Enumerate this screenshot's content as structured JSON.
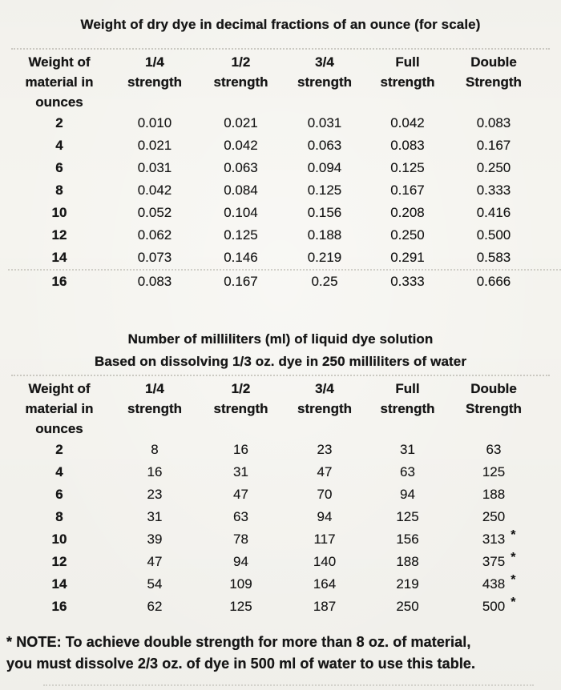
{
  "colors": {
    "paper": "#f5f4ef",
    "ink": "#161616",
    "rule": "#a9a79e"
  },
  "tables": [
    {
      "title_lines": [
        "Weight of dry dye in decimal fractions of an ounce (for scale)"
      ],
      "col_headers": [
        {
          "lines": [
            "Weight of",
            "material in",
            "ounces"
          ]
        },
        {
          "lines": [
            "1/4",
            "strength"
          ]
        },
        {
          "lines": [
            "1/2",
            "strength"
          ]
        },
        {
          "lines": [
            "3/4",
            "strength"
          ]
        },
        {
          "lines": [
            "Full",
            "strength"
          ]
        },
        {
          "lines": [
            "Double",
            "Strength"
          ]
        }
      ],
      "rows": [
        {
          "label": "2",
          "values": [
            "0.010",
            "0.021",
            "0.031",
            "0.042",
            "0.083"
          ]
        },
        {
          "label": "4",
          "values": [
            "0.021",
            "0.042",
            "0.063",
            "0.083",
            "0.167"
          ]
        },
        {
          "label": "6",
          "values": [
            "0.031",
            "0.063",
            "0.094",
            "0.125",
            "0.250"
          ]
        },
        {
          "label": "8",
          "values": [
            "0.042",
            "0.084",
            "0.125",
            "0.167",
            "0.333"
          ]
        },
        {
          "label": "10",
          "values": [
            "0.052",
            "0.104",
            "0.156",
            "0.208",
            "0.416"
          ]
        },
        {
          "label": "12",
          "values": [
            "0.062",
            "0.125",
            "0.188",
            "0.250",
            "0.500"
          ]
        },
        {
          "label": "14",
          "values": [
            "0.073",
            "0.146",
            "0.219",
            "0.291",
            "0.583"
          ]
        },
        {
          "label": "16",
          "values": [
            "0.083",
            "0.167",
            "0.25",
            "0.333",
            "0.666"
          ]
        }
      ]
    },
    {
      "title_lines": [
        "Number of milliliters (ml) of liquid dye solution",
        "Based on dissolving 1/3 oz. dye in 250 milliliters of water"
      ],
      "col_headers": [
        {
          "lines": [
            "Weight of",
            "material in",
            "ounces"
          ]
        },
        {
          "lines": [
            "1/4",
            "strength"
          ]
        },
        {
          "lines": [
            "1/2",
            "strength"
          ]
        },
        {
          "lines": [
            "3/4",
            "strength"
          ]
        },
        {
          "lines": [
            "Full",
            "strength"
          ]
        },
        {
          "lines": [
            "Double",
            "Strength"
          ]
        }
      ],
      "rows": [
        {
          "label": "2",
          "values": [
            "8",
            "16",
            "23",
            "31",
            "63"
          ]
        },
        {
          "label": "4",
          "values": [
            "16",
            "31",
            "47",
            "63",
            "125"
          ]
        },
        {
          "label": "6",
          "values": [
            "23",
            "47",
            "70",
            "94",
            "188"
          ]
        },
        {
          "label": "8",
          "values": [
            "31",
            "63",
            "94",
            "125",
            "250"
          ]
        },
        {
          "label": "10",
          "values": [
            "39",
            "78",
            "117",
            "156",
            "313"
          ],
          "double_asterisk": "*"
        },
        {
          "label": "12",
          "values": [
            "47",
            "94",
            "140",
            "188",
            "375"
          ],
          "double_asterisk": "*"
        },
        {
          "label": "14",
          "values": [
            "54",
            "109",
            "164",
            "219",
            "438"
          ],
          "double_asterisk": "*"
        },
        {
          "label": "16",
          "values": [
            "62",
            "125",
            "187",
            "250",
            "500"
          ],
          "double_asterisk": "*"
        }
      ]
    }
  ],
  "note_lines": [
    "* NOTE: To achieve double strength for more than 8 oz. of material,",
    "you must dissolve 2/3 oz. of dye in 500 ml of water to use this table."
  ]
}
